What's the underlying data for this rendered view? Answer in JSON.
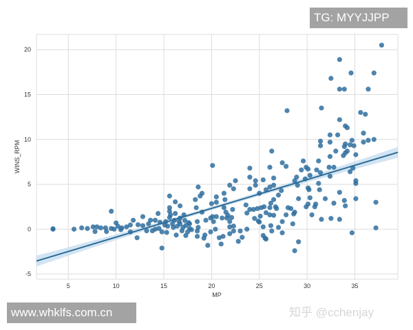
{
  "chart_data": {
    "type": "scatter",
    "title": "",
    "xlabel": "MP",
    "ylabel": "WINS_RPM",
    "xlim": [
      1.67,
      39.5
    ],
    "ylim": [
      -5.56,
      21.7
    ],
    "xticks": [
      5,
      10,
      15,
      20,
      25,
      30,
      35
    ],
    "yticks": [
      -5,
      0,
      5,
      10,
      15,
      20
    ],
    "grid": true,
    "colors": {
      "points": "#2f6f9f",
      "line": "#2a6a94",
      "band": "#c3dbef"
    },
    "regression": {
      "slope": 0.32,
      "intercept": -4.08,
      "ci_halfwidth_ends": 0.6,
      "ci_halfwidth_center": 0.2
    },
    "points": [
      [
        37.8,
        20.5
      ],
      [
        33.4,
        18.9
      ],
      [
        32.5,
        16.8
      ],
      [
        34.6,
        17.4
      ],
      [
        37.0,
        17.4
      ],
      [
        33.4,
        15.6
      ],
      [
        33.9,
        15.6
      ],
      [
        36.4,
        15.6
      ],
      [
        27.9,
        13.2
      ],
      [
        31.5,
        13.5
      ],
      [
        35.6,
        13.0
      ],
      [
        36.1,
        12.8
      ],
      [
        33.4,
        12.2
      ],
      [
        34.0,
        11.5
      ],
      [
        34.2,
        11.3
      ],
      [
        32.4,
        10.5
      ],
      [
        33.2,
        10.5
      ],
      [
        35.9,
        10.7
      ],
      [
        31.4,
        9.8
      ],
      [
        32.4,
        9.7
      ],
      [
        34.7,
        9.9
      ],
      [
        35.9,
        9.7
      ],
      [
        36.4,
        9.9
      ],
      [
        37.0,
        10.0
      ],
      [
        31.4,
        9.3
      ],
      [
        34.0,
        9.5
      ],
      [
        33.9,
        9.2
      ],
      [
        34.5,
        9.4
      ],
      [
        34.9,
        9.3
      ],
      [
        33.0,
        8.7
      ],
      [
        34.2,
        8.7
      ],
      [
        26.3,
        8.7
      ],
      [
        35.1,
        8.3
      ],
      [
        33.8,
        8.2
      ],
      [
        34.0,
        8.5
      ],
      [
        32.4,
        8.1
      ],
      [
        31.2,
        7.6
      ],
      [
        29.6,
        7.6
      ],
      [
        27.4,
        7.4
      ],
      [
        20.1,
        7.1
      ],
      [
        24.0,
        6.8
      ],
      [
        26.1,
        6.9
      ],
      [
        27.8,
        7.0
      ],
      [
        29.9,
        6.9
      ],
      [
        30.1,
        6.7
      ],
      [
        29.4,
        6.6
      ],
      [
        32.3,
        6.9
      ],
      [
        32.8,
        6.9
      ],
      [
        31.0,
        6.6
      ],
      [
        31.4,
        6.3
      ],
      [
        32.4,
        5.9
      ],
      [
        34.5,
        6.4
      ],
      [
        34.8,
        6.8
      ],
      [
        24.0,
        5.8
      ],
      [
        24.6,
        5.4
      ],
      [
        25.4,
        5.5
      ],
      [
        26.5,
        5.7
      ],
      [
        22.5,
        5.4
      ],
      [
        21.9,
        4.9
      ],
      [
        22.3,
        4.5
      ],
      [
        24.0,
        4.5
      ],
      [
        24.6,
        4.9
      ],
      [
        18.6,
        4.7
      ],
      [
        19.0,
        4.0
      ],
      [
        21.3,
        4.0
      ],
      [
        26.1,
        4.7
      ],
      [
        26.5,
        4.9
      ],
      [
        25.7,
        4.4
      ],
      [
        25.0,
        4.0
      ],
      [
        27.3,
        4.3
      ],
      [
        27.0,
        3.8
      ],
      [
        28.7,
        5.4
      ],
      [
        28.9,
        5.8
      ],
      [
        29.8,
        5.6
      ],
      [
        30.3,
        6.0
      ],
      [
        31.2,
        5.1
      ],
      [
        31.3,
        4.4
      ],
      [
        30.1,
        4.6
      ],
      [
        30.2,
        4.4
      ],
      [
        29.0,
        4.9
      ],
      [
        35.1,
        5.4
      ],
      [
        35.1,
        5.1
      ],
      [
        30.3,
        3.5
      ],
      [
        31.9,
        3.4
      ],
      [
        29.1,
        3.4
      ],
      [
        33.4,
        4.1
      ],
      [
        33.9,
        3.2
      ],
      [
        34.0,
        2.6
      ],
      [
        35.1,
        3.4
      ],
      [
        32.8,
        2.9
      ],
      [
        37.2,
        3.0
      ],
      [
        37.2,
        0.15
      ],
      [
        34.7,
        -0.4
      ],
      [
        30.5,
        1.6
      ],
      [
        31.5,
        1.1
      ],
      [
        32.5,
        1.2
      ],
      [
        33.4,
        1.1
      ],
      [
        29.9,
        2.5
      ],
      [
        30.1,
        2.8
      ],
      [
        30.8,
        2.5
      ],
      [
        30.9,
        2.8
      ],
      [
        28.7,
        1.9
      ],
      [
        28.6,
        1.7
      ],
      [
        28.3,
        2.3
      ],
      [
        28.0,
        2.4
      ],
      [
        27.8,
        1.6
      ],
      [
        28.5,
        0.6
      ],
      [
        27.4,
        0.85
      ],
      [
        27.4,
        -0.4
      ],
      [
        27.0,
        0.2
      ],
      [
        26.3,
        -0.2
      ],
      [
        26.2,
        0.4
      ],
      [
        29.1,
        -1.4
      ],
      [
        28.7,
        -2.4
      ],
      [
        25.4,
        -0.7
      ],
      [
        25.6,
        -1.0
      ],
      [
        25.7,
        -1.1
      ],
      [
        25.4,
        0.26
      ],
      [
        24.9,
        0.9
      ],
      [
        25.0,
        0.8
      ],
      [
        24.5,
        1.2
      ],
      [
        25.1,
        1.45
      ],
      [
        25.7,
        1.84
      ],
      [
        26.1,
        1.6
      ],
      [
        26.5,
        1.55
      ],
      [
        26.1,
        2.4
      ],
      [
        26.7,
        2.5
      ],
      [
        26.8,
        2.3
      ],
      [
        26.2,
        2.9
      ],
      [
        26.5,
        3.3
      ],
      [
        25.5,
        2.5
      ],
      [
        25.2,
        2.4
      ],
      [
        24.8,
        2.3
      ],
      [
        24.4,
        2.2
      ],
      [
        24.0,
        2.2
      ],
      [
        23.6,
        2.7
      ],
      [
        23.7,
        1.8
      ],
      [
        23.7,
        0.0
      ],
      [
        23.0,
        -0.2
      ],
      [
        23.2,
        -0.9
      ],
      [
        22.8,
        -1.35
      ],
      [
        21.9,
        -0.5
      ],
      [
        22.3,
        -0.2
      ],
      [
        22.3,
        0.35
      ],
      [
        21.9,
        0.26
      ],
      [
        21.9,
        0.85
      ],
      [
        22.1,
        1.3
      ],
      [
        22.2,
        2.2
      ],
      [
        21.7,
        1.55
      ],
      [
        21.5,
        1.9
      ],
      [
        21.3,
        2.4
      ],
      [
        21.4,
        3.3
      ],
      [
        20.5,
        3.6
      ],
      [
        20.5,
        3.0
      ],
      [
        20.0,
        2.85
      ],
      [
        20.1,
        1.4
      ],
      [
        20.2,
        0.85
      ],
      [
        20.4,
        0.0
      ],
      [
        19.9,
        -0.3
      ],
      [
        19.6,
        -1.8
      ],
      [
        19.3,
        -0.65
      ],
      [
        19.2,
        -1.0
      ],
      [
        20.8,
        -0.95
      ],
      [
        21.0,
        -1.65
      ],
      [
        21.2,
        -0.8
      ],
      [
        21.6,
        1.25
      ],
      [
        21.1,
        1.25
      ],
      [
        20.5,
        1.4
      ],
      [
        19.9,
        1.25
      ],
      [
        19.4,
        1.0
      ],
      [
        19.0,
        1.9
      ],
      [
        18.4,
        2.4
      ],
      [
        18.3,
        3.3
      ],
      [
        18.8,
        3.7
      ],
      [
        18.5,
        0.85
      ],
      [
        18.6,
        0.2
      ],
      [
        18.5,
        -0.2
      ],
      [
        18.5,
        -0.8
      ],
      [
        17.3,
        -0.7
      ],
      [
        16.3,
        -0.65
      ],
      [
        14.8,
        -2.1
      ],
      [
        15.6,
        3.7
      ],
      [
        16.2,
        3.05
      ],
      [
        16.7,
        2.6
      ],
      [
        15.6,
        2.4
      ],
      [
        15.6,
        2.0
      ],
      [
        15.7,
        1.6
      ],
      [
        16.2,
        1.75
      ],
      [
        17.1,
        1.6
      ],
      [
        14.4,
        1.75
      ],
      [
        12.8,
        1.4
      ],
      [
        11.8,
        1.0
      ],
      [
        9.5,
        2.0
      ],
      [
        10.0,
        0.7
      ],
      [
        13.6,
        1.0
      ],
      [
        14.1,
        1.0
      ],
      [
        15.2,
        0.85
      ],
      [
        14.6,
        0.78
      ],
      [
        13.4,
        0.6
      ],
      [
        12.8,
        0.4
      ],
      [
        12.3,
        0.5
      ],
      [
        12.2,
        -0.95
      ],
      [
        11.5,
        0.47
      ],
      [
        11.1,
        0.26
      ],
      [
        11.5,
        -0.3
      ],
      [
        10.6,
        0.15
      ],
      [
        10.2,
        0.33
      ],
      [
        10.5,
        -0.05
      ],
      [
        8.9,
        0.15
      ],
      [
        9.0,
        -0.26
      ],
      [
        8.4,
        0.15
      ],
      [
        7.8,
        -0.26
      ],
      [
        8.0,
        0.26
      ],
      [
        7.6,
        0.26
      ],
      [
        7.0,
        0.08
      ],
      [
        6.4,
        0.15
      ],
      [
        5.6,
        0.0
      ],
      [
        3.4,
        0.0
      ],
      [
        3.4,
        0.05
      ],
      [
        9.5,
        0.08
      ],
      [
        9.8,
        0.0
      ],
      [
        13.2,
        -0.18
      ],
      [
        13.8,
        -0.18
      ],
      [
        14.1,
        0.0
      ],
      [
        14.5,
        0.08
      ],
      [
        14.8,
        -0.3
      ],
      [
        15.3,
        -0.36
      ],
      [
        15.4,
        0.34
      ],
      [
        15.9,
        0.6
      ],
      [
        16.0,
        0.2
      ],
      [
        16.4,
        0.34
      ],
      [
        16.7,
        0.6
      ],
      [
        17.0,
        0.2
      ],
      [
        17.3,
        0.41
      ],
      [
        17.7,
        0.6
      ],
      [
        17.7,
        0.08
      ],
      [
        16.1,
        0.98
      ],
      [
        16.7,
        1.24
      ],
      [
        17.2,
        0.98
      ],
      [
        17.6,
        0.73
      ],
      [
        17.9,
        -0.05
      ],
      [
        16.9,
        -0.18
      ],
      [
        16.6,
        0.85
      ],
      [
        15.1,
        0.47
      ],
      [
        15.6,
        1.3
      ],
      [
        17.5,
        -0.3
      ]
    ]
  },
  "watermarks": {
    "tg": "TG: MYYJJPP",
    "site": "www.whklfs.com.cn",
    "zhihu": "知乎 @cchenjay"
  }
}
